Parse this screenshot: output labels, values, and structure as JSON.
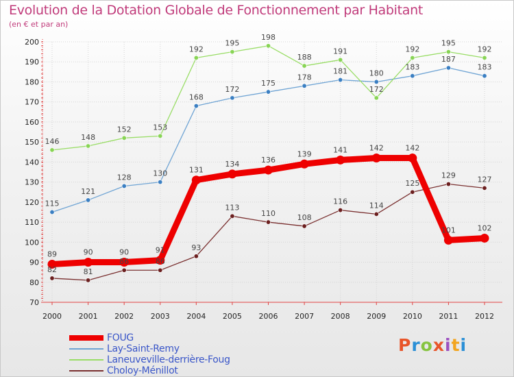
{
  "title": "Evolution de la Dotation Globale de Fonctionnement par Habitant",
  "subtitle": "(en € et par an)",
  "brand": {
    "text": "Proxiti",
    "colors": [
      "#e8552a",
      "#2a8fd6",
      "#86c440",
      "#e8552a",
      "#9c4fbf",
      "#f2a51f",
      "#2a8fd6"
    ]
  },
  "chart_data": {
    "type": "line",
    "title": "Evolution de la Dotation Globale de Fonctionnement par Habitant",
    "subtitle": "(en € et par an)",
    "xlabel": "",
    "ylabel": "",
    "ylim": [
      70,
      200
    ],
    "yticks": [
      70,
      80,
      90,
      100,
      110,
      120,
      130,
      140,
      150,
      160,
      170,
      180,
      190,
      200
    ],
    "grid": true,
    "legend_position": "bottom-left",
    "x": [
      "2000",
      "2001",
      "2002",
      "2003",
      "2004",
      "2005",
      "2006",
      "2007",
      "2008",
      "2009",
      "2010",
      "2011",
      "2012"
    ],
    "series": [
      {
        "name": "FOUG",
        "color": "#ee0000",
        "marker_color": "#ee0000",
        "emphasis": true,
        "values": [
          89,
          90,
          90,
          91,
          131,
          134,
          136,
          139,
          141,
          142,
          142,
          101,
          102
        ]
      },
      {
        "name": "Lay-Saint-Remy",
        "color": "#6fa4d4",
        "marker_color": "#3b7fc2",
        "emphasis": false,
        "values": [
          115,
          121,
          128,
          130,
          168,
          172,
          175,
          178,
          181,
          180,
          183,
          187,
          183
        ]
      },
      {
        "name": "Laneuveville-derrière-Foug",
        "color": "#99dd66",
        "marker_color": "#88d455",
        "emphasis": false,
        "values": [
          146,
          148,
          152,
          153,
          192,
          195,
          198,
          188,
          191,
          172,
          192,
          195,
          192
        ]
      },
      {
        "name": "Choloy-Ménillot",
        "color": "#7a3030",
        "marker_color": "#6b1f1f",
        "emphasis": false,
        "values": [
          82,
          81,
          86,
          86,
          93,
          113,
          110,
          108,
          116,
          114,
          125,
          129,
          127
        ]
      }
    ]
  }
}
